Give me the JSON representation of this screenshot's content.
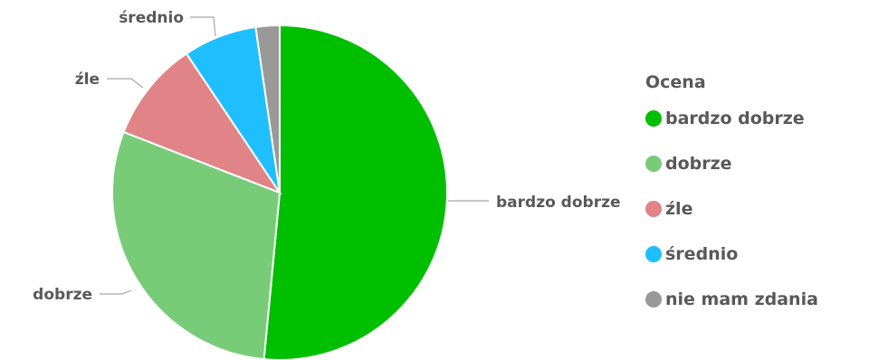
{
  "chart_data": {
    "type": "pie",
    "title": "",
    "slices": [
      {
        "label": "bardzo dobrze",
        "value": 51.5,
        "color": "#00bf00"
      },
      {
        "label": "dobrze",
        "value": 29.4,
        "color": "#78cc78"
      },
      {
        "label": "źle",
        "value": 9.7,
        "color": "#e08487"
      },
      {
        "label": "średnio",
        "value": 7.1,
        "color": "#1fbfff"
      },
      {
        "label": "nie mam zdania",
        "value": 2.3,
        "color": "#999999"
      }
    ],
    "legend": {
      "title": "Ocena",
      "position": "right",
      "items": [
        "bardzo dobrze",
        "dobrze",
        "źle",
        "średnio",
        "nie mam zdania"
      ]
    }
  }
}
